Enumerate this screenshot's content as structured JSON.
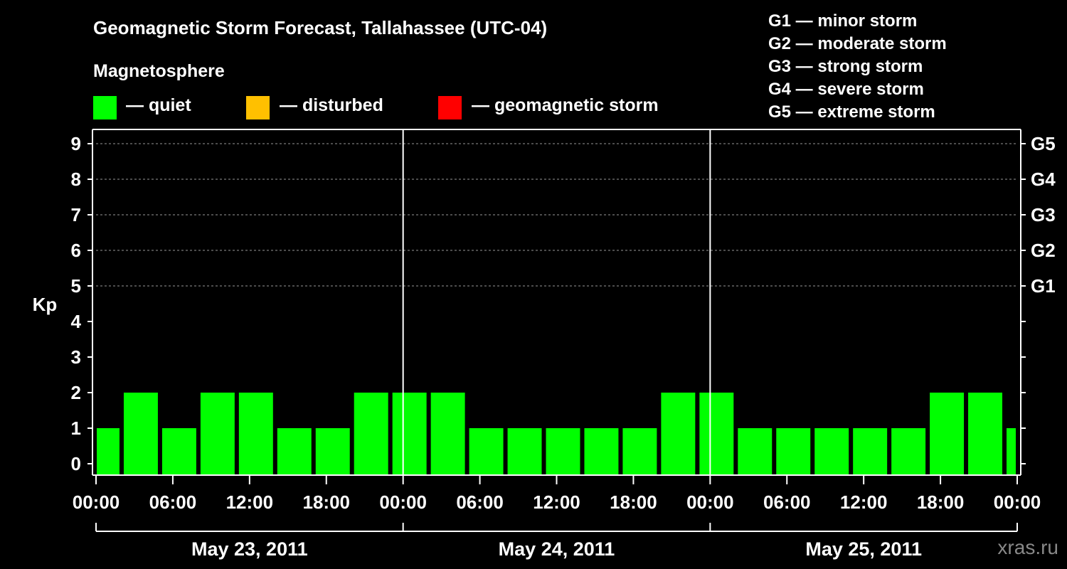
{
  "title": "Geomagnetic Storm Forecast, Tallahassee (UTC-04)",
  "subtitle": "Magnetosphere",
  "legend": [
    {
      "label": "— quiet",
      "color": "#00ff00"
    },
    {
      "label": "— disturbed",
      "color": "#ffc000"
    },
    {
      "label": "— geomagnetic storm",
      "color": "#ff0000"
    }
  ],
  "g_scale": [
    "G1 — minor storm",
    "G2 — moderate storm",
    "G3 — strong storm",
    "G4 — severe storm",
    "G5 — extreme storm"
  ],
  "watermark": "xras.ru",
  "chart_data": {
    "type": "bar",
    "ylabel": "Kp",
    "ylim": [
      0,
      9
    ],
    "yticks": [
      0,
      1,
      2,
      3,
      4,
      5,
      6,
      7,
      8,
      9
    ],
    "right_ticks": [
      {
        "kp": 5,
        "label": "G1"
      },
      {
        "kp": 6,
        "label": "G2"
      },
      {
        "kp": 7,
        "label": "G3"
      },
      {
        "kp": 8,
        "label": "G4"
      },
      {
        "kp": 9,
        "label": "G5"
      }
    ],
    "x_hours_range": [
      0,
      72
    ],
    "xticks": [
      {
        "hour": 0,
        "label": "00:00"
      },
      {
        "hour": 6,
        "label": "06:00"
      },
      {
        "hour": 12,
        "label": "12:00"
      },
      {
        "hour": 18,
        "label": "18:00"
      },
      {
        "hour": 24,
        "label": "00:00"
      },
      {
        "hour": 30,
        "label": "06:00"
      },
      {
        "hour": 36,
        "label": "12:00"
      },
      {
        "hour": 42,
        "label": "18:00"
      },
      {
        "hour": 48,
        "label": "00:00"
      },
      {
        "hour": 54,
        "label": "06:00"
      },
      {
        "hour": 60,
        "label": "12:00"
      },
      {
        "hour": 66,
        "label": "18:00"
      },
      {
        "hour": 72,
        "label": "00:00"
      }
    ],
    "days": [
      {
        "label": "May 23, 2011",
        "start_hour": 0,
        "end_hour": 24
      },
      {
        "label": "May 24, 2011",
        "start_hour": 24,
        "end_hour": 48
      },
      {
        "label": "May 25, 2011",
        "start_hour": 48,
        "end_hour": 72
      }
    ],
    "bars": [
      {
        "start_hour": 0,
        "end_hour": 2,
        "kp": 1,
        "status": "quiet"
      },
      {
        "start_hour": 2,
        "end_hour": 5,
        "kp": 2,
        "status": "quiet"
      },
      {
        "start_hour": 5,
        "end_hour": 8,
        "kp": 1,
        "status": "quiet"
      },
      {
        "start_hour": 8,
        "end_hour": 11,
        "kp": 2,
        "status": "quiet"
      },
      {
        "start_hour": 11,
        "end_hour": 14,
        "kp": 2,
        "status": "quiet"
      },
      {
        "start_hour": 14,
        "end_hour": 17,
        "kp": 1,
        "status": "quiet"
      },
      {
        "start_hour": 17,
        "end_hour": 20,
        "kp": 1,
        "status": "quiet"
      },
      {
        "start_hour": 20,
        "end_hour": 23,
        "kp": 2,
        "status": "quiet"
      },
      {
        "start_hour": 23,
        "end_hour": 26,
        "kp": 2,
        "status": "quiet"
      },
      {
        "start_hour": 26,
        "end_hour": 29,
        "kp": 2,
        "status": "quiet"
      },
      {
        "start_hour": 29,
        "end_hour": 32,
        "kp": 1,
        "status": "quiet"
      },
      {
        "start_hour": 32,
        "end_hour": 35,
        "kp": 1,
        "status": "quiet"
      },
      {
        "start_hour": 35,
        "end_hour": 38,
        "kp": 1,
        "status": "quiet"
      },
      {
        "start_hour": 38,
        "end_hour": 41,
        "kp": 1,
        "status": "quiet"
      },
      {
        "start_hour": 41,
        "end_hour": 44,
        "kp": 1,
        "status": "quiet"
      },
      {
        "start_hour": 44,
        "end_hour": 47,
        "kp": 2,
        "status": "quiet"
      },
      {
        "start_hour": 47,
        "end_hour": 50,
        "kp": 2,
        "status": "quiet"
      },
      {
        "start_hour": 50,
        "end_hour": 53,
        "kp": 1,
        "status": "quiet"
      },
      {
        "start_hour": 53,
        "end_hour": 56,
        "kp": 1,
        "status": "quiet"
      },
      {
        "start_hour": 56,
        "end_hour": 59,
        "kp": 1,
        "status": "quiet"
      },
      {
        "start_hour": 59,
        "end_hour": 62,
        "kp": 1,
        "status": "quiet"
      },
      {
        "start_hour": 62,
        "end_hour": 65,
        "kp": 1,
        "status": "quiet"
      },
      {
        "start_hour": 65,
        "end_hour": 68,
        "kp": 2,
        "status": "quiet"
      },
      {
        "start_hour": 68,
        "end_hour": 71,
        "kp": 2,
        "status": "quiet"
      },
      {
        "start_hour": 71,
        "end_hour": 72,
        "kp": 1,
        "status": "quiet"
      }
    ],
    "status_colors": {
      "quiet": "#00ff00",
      "disturbed": "#ffc000",
      "storm": "#ff0000"
    }
  }
}
